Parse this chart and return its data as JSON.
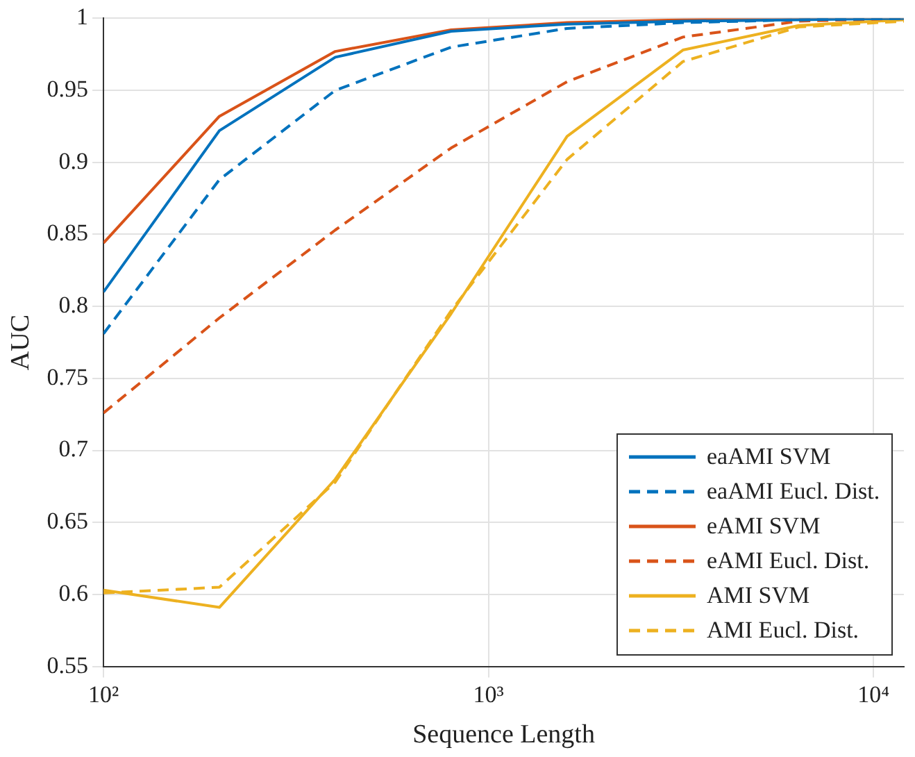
{
  "chart_data": {
    "type": "line",
    "xlabel": "Sequence Length",
    "ylabel": "AUC",
    "log": "x",
    "x": [
      100,
      200,
      400,
      800,
      1600,
      3200,
      6400,
      12000
    ],
    "xlim": [
      100,
      12000
    ],
    "xticks": [
      {
        "value": 100,
        "label": "10²"
      },
      {
        "value": 1000,
        "label": "10³"
      },
      {
        "value": 10000,
        "label": "10⁴"
      }
    ],
    "ylim": [
      0.55,
      1
    ],
    "yticks": [
      0.55,
      0.6,
      0.65,
      0.7,
      0.75,
      0.8,
      0.85,
      0.9,
      0.95,
      1
    ],
    "grid": true,
    "legend": "bottom right",
    "marker": "none",
    "series": [
      {
        "name": "eaAMI SVM",
        "color": "#0072bd",
        "line_style": "solid",
        "values": [
          0.81,
          0.922,
          0.973,
          0.991,
          0.996,
          0.998,
          0.999,
          1.0
        ]
      },
      {
        "name": "eaAMI Eucl. Dist.",
        "color": "#0072bd",
        "line_style": "dashed",
        "values": [
          0.781,
          0.888,
          0.95,
          0.98,
          0.993,
          0.997,
          0.999,
          1.0
        ]
      },
      {
        "name": "eAMI SVM",
        "color": "#d95319",
        "line_style": "solid",
        "values": [
          0.844,
          0.932,
          0.977,
          0.992,
          0.997,
          0.999,
          1.0,
          1.0
        ]
      },
      {
        "name": "eAMI Eucl. Dist.",
        "color": "#d95319",
        "line_style": "dashed",
        "values": [
          0.726,
          0.792,
          0.853,
          0.91,
          0.956,
          0.987,
          0.998,
          1.0
        ]
      },
      {
        "name": "AMI SVM",
        "color": "#edb120",
        "line_style": "solid",
        "values": [
          0.603,
          0.591,
          0.68,
          0.795,
          0.918,
          0.978,
          0.995,
          0.999
        ]
      },
      {
        "name": "AMI Eucl. Dist.",
        "color": "#edb120",
        "line_style": "dashed",
        "values": [
          0.601,
          0.605,
          0.678,
          0.797,
          0.902,
          0.97,
          0.994,
          0.998
        ]
      }
    ]
  }
}
